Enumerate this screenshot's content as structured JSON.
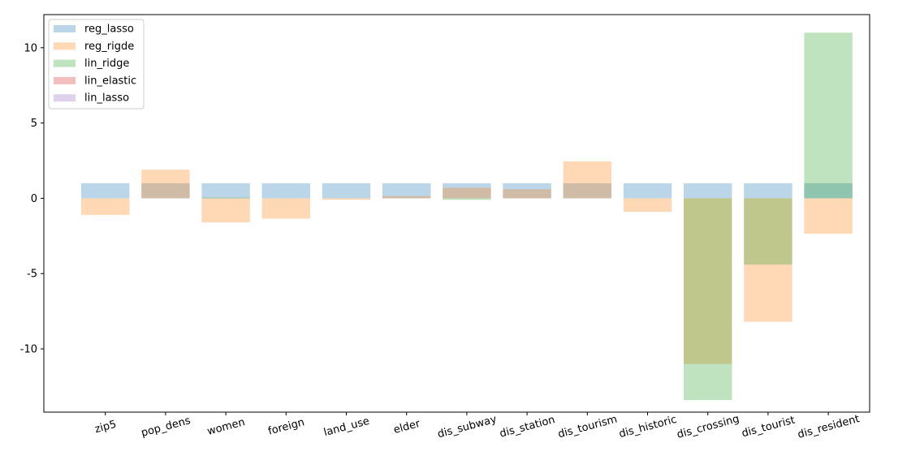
{
  "chart_data": {
    "type": "bar",
    "title": "",
    "xlabel": "",
    "ylabel": "",
    "ylim": [
      -14.2,
      12.2
    ],
    "yticks": [
      -10,
      -5,
      0,
      5,
      10
    ],
    "grid": false,
    "legend_position": "top-left",
    "categories": [
      "zip5",
      "pop_dens",
      "women",
      "foreign",
      "land_use",
      "elder",
      "dis_subway",
      "dis_station",
      "dis_tourism",
      "dis_historic",
      "dis_crossing",
      "dis_tourist",
      "dis_resident"
    ],
    "series": [
      {
        "name": "reg_lasso",
        "color": "#1f77b4",
        "values": [
          1.0,
          1.0,
          1.0,
          1.0,
          1.0,
          1.0,
          1.0,
          1.0,
          1.0,
          1.0,
          1.0,
          1.0,
          1.0
        ]
      },
      {
        "name": "reg_rigde",
        "color": "#ff7f0e",
        "values": [
          -1.1,
          1.9,
          -1.6,
          -1.35,
          -0.1,
          0.15,
          0.7,
          0.6,
          2.45,
          -0.9,
          -11.0,
          -8.2,
          -2.35
        ]
      },
      {
        "name": "lin_ridge",
        "color": "#2ca02c",
        "values": [
          0.0,
          0.0,
          0.05,
          0.0,
          0.0,
          0.0,
          -0.1,
          0.0,
          0.0,
          0.0,
          -13.4,
          -4.4,
          11.0
        ]
      },
      {
        "name": "lin_elastic",
        "color": "#d62728",
        "values": [
          0.0,
          0.0,
          0.0,
          0.0,
          0.0,
          0.0,
          0.0,
          0.0,
          0.0,
          0.0,
          0.0,
          0.0,
          0.0
        ]
      },
      {
        "name": "lin_lasso",
        "color": "#9467bd",
        "values": [
          0.0,
          0.0,
          0.0,
          0.0,
          0.0,
          0.0,
          0.0,
          0.0,
          0.0,
          0.0,
          0.0,
          0.0,
          0.0
        ]
      }
    ],
    "bar_alpha": 0.3
  }
}
